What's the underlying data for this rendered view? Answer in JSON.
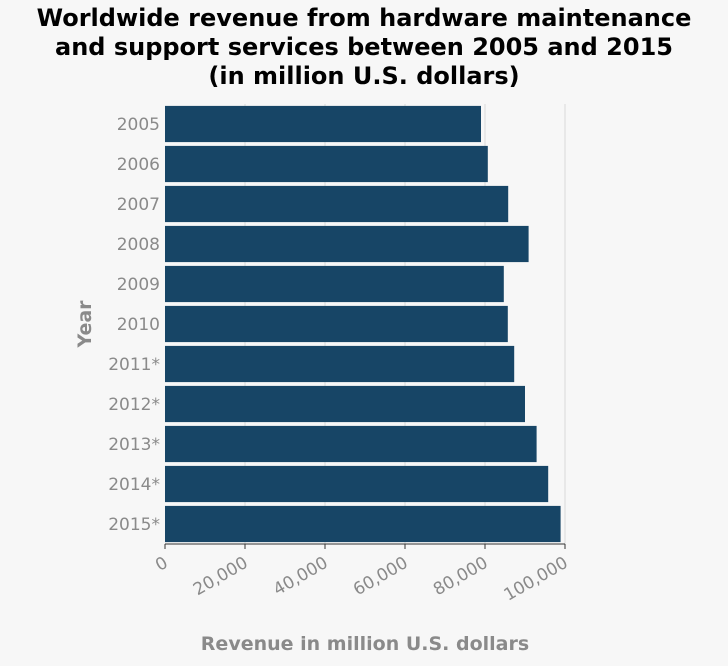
{
  "chart_data": {
    "type": "bar",
    "orientation": "horizontal",
    "title_lines": [
      "Worldwide revenue from hardware maintenance",
      "and support services between 2005 and 2015",
      "(in million U.S. dollars)"
    ],
    "xlabel": "Revenue in million U.S. dollars",
    "ylabel": "Year",
    "categories": [
      "2005",
      "2006",
      "2007",
      "2008",
      "2009",
      "2010",
      "2011*",
      "2012*",
      "2013*",
      "2014*",
      "2015*"
    ],
    "values": [
      79000,
      80700,
      85800,
      90900,
      84700,
      85700,
      87300,
      90000,
      92900,
      95800,
      98900
    ],
    "xlim": [
      0,
      100000
    ],
    "xticks": [
      "0",
      "20,000",
      "40,000",
      "60,000",
      "80,000",
      "100,000"
    ],
    "xtick_values": [
      0,
      20000,
      40000,
      60000,
      80000,
      100000
    ],
    "grid": "vertical",
    "bar_color": "#174566",
    "grid_color": "#d9d9d9",
    "text_color": "#8a8a8a"
  }
}
